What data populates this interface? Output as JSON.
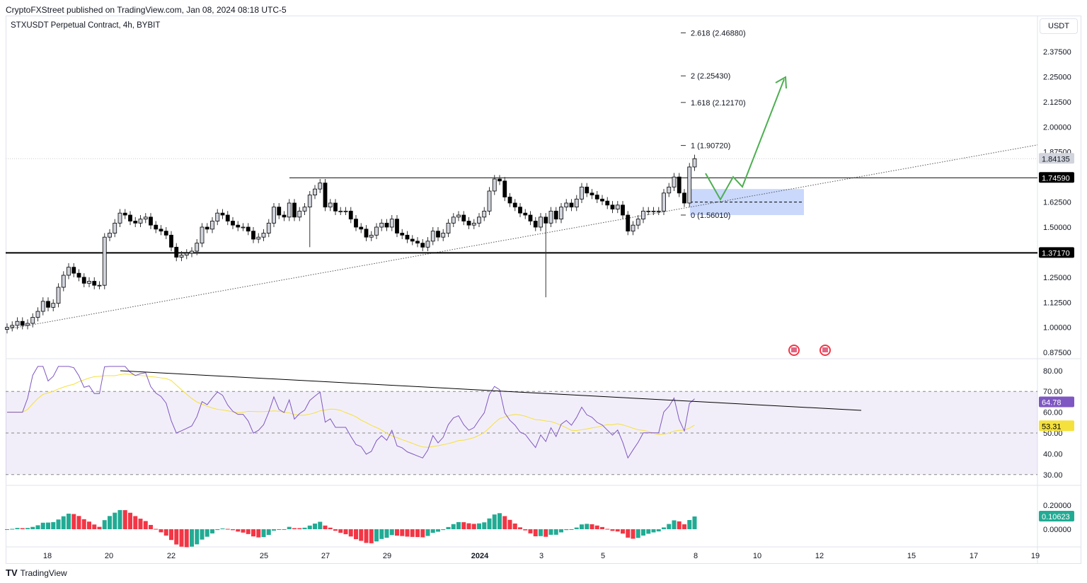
{
  "header": {
    "published": "CryptoFXStreet published on TradingView.com, Jan 08, 2024 08:18 UTC-5",
    "symbol": "STXUSDT Perpetual Contract, 4h, BYBIT",
    "currency": "USDT"
  },
  "footer": {
    "brand": "TradingView"
  },
  "colors": {
    "up": "#d1d4dc",
    "down": "#000000",
    "rsi": "#7e57c2",
    "rsi_ma": "#f5e13b",
    "hist_rising": "#22ab94",
    "hist_falling": "#f23645",
    "forecast": "#4caf50",
    "zone": "#b3c8fb"
  },
  "chart_data": [
    {
      "type": "candlestick",
      "title": "STXUSDT Perpetual Contract, 4h, BYBIT",
      "interval": "4h",
      "x_ticks": [
        "18",
        "20",
        "22",
        "25",
        "27",
        "29",
        "2024",
        "3",
        "5",
        "8",
        "10",
        "12",
        "15",
        "17",
        "19"
      ],
      "y_ticks": [
        "2.37500",
        "2.25000",
        "2.12500",
        "2.00000",
        "1.87500",
        "1.62500",
        "1.50000",
        "1.25000",
        "1.12500",
        "1.00000",
        "0.87500"
      ],
      "ylim": [
        0.82,
        2.5
      ],
      "closes": [
        1.0,
        1.01,
        1.03,
        1.01,
        1.02,
        1.05,
        1.08,
        1.13,
        1.1,
        1.12,
        1.2,
        1.26,
        1.3,
        1.27,
        1.25,
        1.22,
        1.23,
        1.21,
        1.21,
        1.45,
        1.47,
        1.52,
        1.57,
        1.56,
        1.53,
        1.52,
        1.54,
        1.55,
        1.51,
        1.49,
        1.48,
        1.46,
        1.4,
        1.35,
        1.36,
        1.37,
        1.38,
        1.42,
        1.5,
        1.49,
        1.53,
        1.57,
        1.56,
        1.53,
        1.51,
        1.5,
        1.5,
        1.48,
        1.44,
        1.45,
        1.47,
        1.52,
        1.6,
        1.56,
        1.55,
        1.62,
        1.55,
        1.58,
        1.6,
        1.66,
        1.69,
        1.72,
        1.6,
        1.62,
        1.58,
        1.58,
        1.58,
        1.54,
        1.5,
        1.49,
        1.45,
        1.46,
        1.5,
        1.52,
        1.5,
        1.54,
        1.47,
        1.46,
        1.44,
        1.43,
        1.42,
        1.4,
        1.43,
        1.48,
        1.45,
        1.47,
        1.52,
        1.55,
        1.56,
        1.53,
        1.51,
        1.52,
        1.55,
        1.58,
        1.68,
        1.74,
        1.73,
        1.65,
        1.62,
        1.6,
        1.57,
        1.56,
        1.53,
        1.5,
        1.55,
        1.52,
        1.58,
        1.54,
        1.6,
        1.62,
        1.6,
        1.64,
        1.7,
        1.67,
        1.66,
        1.64,
        1.63,
        1.61,
        1.59,
        1.61,
        1.56,
        1.48,
        1.51,
        1.54,
        1.58,
        1.58,
        1.58,
        1.58,
        1.67,
        1.7,
        1.75,
        1.67,
        1.62,
        1.8,
        1.84135
      ],
      "low_overrides": {
        "59": 1.4,
        "105": 1.15
      },
      "last_price": "1.84135",
      "levels": [
        {
          "label": "1.74590",
          "price": 1.7459
        },
        {
          "label": "1.37170",
          "price": 1.3717
        }
      ],
      "fib": [
        {
          "label": "2.618 (2.46880)",
          "price": 2.4688
        },
        {
          "label": "2 (2.25430)",
          "price": 2.2543
        },
        {
          "label": "1.618 (2.12170)",
          "price": 2.1217
        },
        {
          "label": "1 (1.90720)",
          "price": 1.9072
        },
        {
          "label": "0 (1.56010)",
          "price": 1.5601
        }
      ],
      "zone": [
        1.56,
        1.69
      ],
      "trendline": [
        1.0,
        1.91
      ]
    },
    {
      "type": "line",
      "indicator": "RSI",
      "y_ticks": [
        "80.00",
        "70.00",
        "60.00",
        "50.00",
        "40.00",
        "30.00"
      ],
      "ylim": [
        25,
        85
      ],
      "bands": [
        30,
        50,
        70
      ],
      "rsi_value": "64.78",
      "rsi_ma_value": "53.31"
    },
    {
      "type": "bar",
      "indicator": "MACD histogram",
      "y_ticks": [
        "0.20000",
        "0.00000"
      ],
      "value": "0.10623"
    }
  ]
}
